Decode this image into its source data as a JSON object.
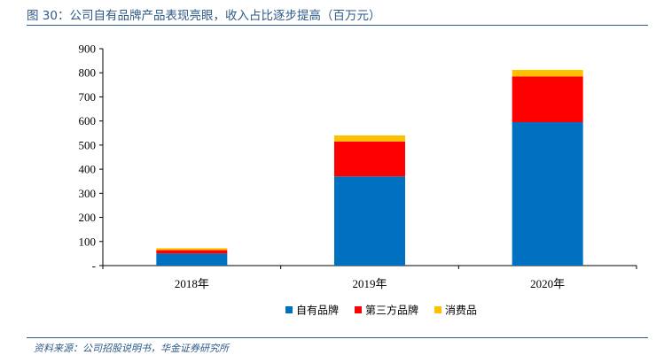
{
  "figure": {
    "title": "图 30：公司自有品牌产品表现亮眼，收入占比逐步提高（百万元）",
    "source": "资料来源：公司招股说明书，华金证券研究所"
  },
  "chart_data": {
    "type": "bar",
    "stacked": true,
    "categories": [
      "2018年",
      "2019年",
      "2020年"
    ],
    "series": [
      {
        "name": "自有品牌",
        "color": "#0070c0",
        "values": [
          50,
          370,
          595
        ]
      },
      {
        "name": "第三方品牌",
        "color": "#ff0000",
        "values": [
          14,
          145,
          190
        ]
      },
      {
        "name": "消费品",
        "color": "#ffc000",
        "values": [
          8,
          25,
          27
        ]
      }
    ],
    "ylim": [
      0,
      900
    ],
    "yticks": [
      "-",
      "100",
      "200",
      "300",
      "400",
      "500",
      "600",
      "700",
      "800",
      "900"
    ],
    "grid": false,
    "legend": "bottom"
  }
}
